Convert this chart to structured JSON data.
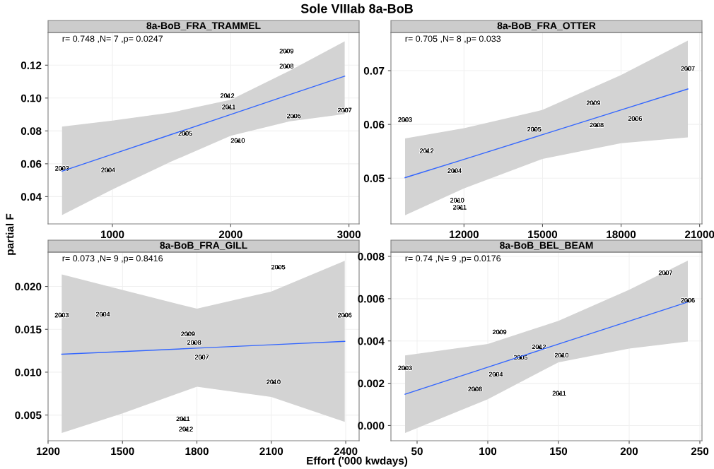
{
  "chart_data": [
    {
      "type": "scatter",
      "title": "8a-BoB_FRA_TRAMMEL",
      "ylabel": "partial F",
      "annotations": [
        "r= 0.748 ,N= 7 ,p= 0.0247",
        "Sole VIIIab 8a-BoB",
        {
          "text": "2003",
          "x": 574,
          "y": 0.0569
        },
        {
          "text": "2004",
          "x": 964,
          "y": 0.0559
        },
        {
          "text": "2005",
          "x": 1616,
          "y": 0.0782
        },
        {
          "text": "2010",
          "x": 2060,
          "y": 0.0738
        },
        {
          "text": "2011",
          "x": 1984,
          "y": 0.0943
        },
        {
          "text": "2012",
          "x": 1972,
          "y": 0.1011
        },
        {
          "text": "2006",
          "x": 2534,
          "y": 0.0888
        },
        {
          "text": "2008",
          "x": 2472,
          "y": 0.1191
        },
        {
          "text": "2009",
          "x": 2472,
          "y": 0.1283
        },
        {
          "text": "2007",
          "x": 2964,
          "y": 0.0923
        }
      ],
      "xlim": [
        456,
        3086
      ],
      "ylim": [
        0.0234,
        0.1399
      ],
      "xticks": [
        1000,
        2000,
        3000
      ],
      "yticks": [
        {
          "value": 0.04,
          "label": "0.04"
        },
        {
          "value": 0.06,
          "label": "0.06"
        },
        {
          "value": 0.08,
          "label": "0.08"
        },
        {
          "value": 0.1,
          "label": "0.10"
        },
        {
          "value": 0.12,
          "label": "0.12"
        }
      ],
      "grid": true,
      "series": [
        {
          "type": "line",
          "color": "#3366ff",
          "x": [
            574,
            1000,
            1500,
            2000,
            2500,
            2964
          ],
          "values": [
            0.0555,
            0.0658,
            0.0779,
            0.09,
            0.1021,
            0.1133
          ],
          "lower": [
            0.0288,
            0.0444,
            0.0614,
            0.077,
            0.0858,
            0.0902
          ],
          "upper": [
            0.0826,
            0.0863,
            0.0912,
            0.099,
            0.1167,
            0.1345
          ]
        },
        {
          "color": "#000000",
          "marker": "circle",
          "x": [
            574,
            964,
            1616,
            2060,
            1984,
            1972,
            2534,
            2472,
            2472,
            2964
          ],
          "values": [
            0.0569,
            0.0559,
            0.0782,
            0.0738,
            0.0943,
            0.1011,
            0.0888,
            0.1191,
            0.1283,
            0.0923
          ]
        }
      ]
    },
    {
      "type": "scatter",
      "title": "8a-BoB_FRA_OTTER",
      "annotations": [
        "r= 0.705 ,N= 8 ,p= 0.033",
        {
          "text": "2003",
          "x": 9750,
          "y": 0.0608
        },
        {
          "text": "2012",
          "x": 10578,
          "y": 0.055
        },
        {
          "text": "2004",
          "x": 11640,
          "y": 0.0513
        },
        {
          "text": "2010",
          "x": 11740,
          "y": 0.0458
        },
        {
          "text": "2011",
          "x": 11838,
          "y": 0.0445
        },
        {
          "text": "2005",
          "x": 14684,
          "y": 0.059
        },
        {
          "text": "2009",
          "x": 16942,
          "y": 0.0639
        },
        {
          "text": "2008",
          "x": 17068,
          "y": 0.0598
        },
        {
          "text": "2006",
          "x": 18535,
          "y": 0.061
        },
        {
          "text": "2007",
          "x": 20550,
          "y": 0.0703
        }
      ],
      "xlim": [
        9210,
        21090
      ],
      "ylim": [
        0.0415,
        0.0771
      ],
      "xticks": [
        12000,
        15000,
        18000,
        21000
      ],
      "yticks": [
        0.05,
        0.06,
        0.07
      ],
      "grid": true,
      "series": [
        {
          "type": "line",
          "color": "#3366ff",
          "x": [
            9750,
            12000,
            15000,
            18000,
            20550
          ],
          "values": [
            0.0501,
            0.0535,
            0.0581,
            0.0627,
            0.0666
          ],
          "lower": [
            0.0431,
            0.0481,
            0.0536,
            0.0565,
            0.0576
          ],
          "upper": [
            0.0574,
            0.0593,
            0.0627,
            0.0692,
            0.0756
          ]
        },
        {
          "color": "#000000",
          "marker": "circle",
          "x": [
            9750,
            10578,
            11640,
            11740,
            11838,
            14684,
            16942,
            17068,
            18535,
            20550
          ],
          "values": [
            0.0608,
            0.055,
            0.0513,
            0.0458,
            0.0445,
            0.059,
            0.0639,
            0.0598,
            0.061,
            0.0703
          ]
        }
      ]
    },
    {
      "type": "scatter",
      "title": "8a-BoB_FRA_GILL",
      "xlabel": "Effort ('000 kwdays)",
      "annotations": [
        "r= 0.073 ,N= 9 ,p= 0.8416",
        {
          "text": "2003",
          "x": 1255,
          "y": 0.0166
        },
        {
          "text": "2004",
          "x": 1421,
          "y": 0.0167
        },
        {
          "text": "2009",
          "x": 1764,
          "y": 0.0144
        },
        {
          "text": "2008",
          "x": 1789,
          "y": 0.0134
        },
        {
          "text": "2007",
          "x": 1820,
          "y": 0.0117
        },
        {
          "text": "2005",
          "x": 2128,
          "y": 0.0222
        },
        {
          "text": "2010",
          "x": 2109,
          "y": 0.0088
        },
        {
          "text": "2011",
          "x": 1744,
          "y": 0.0045
        },
        {
          "text": "2012",
          "x": 1756,
          "y": 0.0033
        },
        {
          "text": "2006",
          "x": 2396,
          "y": 0.0166
        }
      ],
      "xlim": [
        1200,
        2454
      ],
      "ylim": [
        0.002,
        0.024
      ],
      "xticks": [
        1200,
        1500,
        1800,
        2100,
        2400
      ],
      "yticks": [
        {
          "value": 0.005,
          "label": "0.005"
        },
        {
          "value": 0.01,
          "label": "0.010"
        },
        {
          "value": 0.015,
          "label": "0.015"
        },
        {
          "value": 0.02,
          "label": "0.020"
        }
      ],
      "grid": true,
      "series": [
        {
          "type": "line",
          "color": "#3366ff",
          "x": [
            1255,
            1500,
            1800,
            2100,
            2396
          ],
          "values": [
            0.0121,
            0.0124,
            0.0128,
            0.0132,
            0.0136
          ],
          "lower": [
            0.0029,
            0.0052,
            0.0083,
            0.0071,
            0.0042
          ],
          "upper": [
            0.0214,
            0.0196,
            0.0174,
            0.0194,
            0.023
          ]
        },
        {
          "color": "#000000",
          "marker": "circle",
          "x": [
            1255,
            1421,
            1764,
            1789,
            1820,
            2128,
            2109,
            1744,
            1756,
            2396
          ],
          "values": [
            0.0166,
            0.0167,
            0.0144,
            0.0134,
            0.0117,
            0.0222,
            0.0088,
            0.0045,
            0.0033,
            0.0166
          ]
        }
      ]
    },
    {
      "type": "scatter",
      "title": "8a-BoB_BEL_BEAM",
      "annotations": [
        "r= 0.74 ,N= 9 ,p= 0.0176",
        {
          "text": "2003",
          "x": 41.5,
          "y": 0.0027
        },
        {
          "text": "2008",
          "x": 91,
          "y": 0.0017
        },
        {
          "text": "2004",
          "x": 105.7,
          "y": 0.0024
        },
        {
          "text": "2009",
          "x": 108.3,
          "y": 0.0044
        },
        {
          "text": "2005",
          "x": 123.2,
          "y": 0.0032
        },
        {
          "text": "2012",
          "x": 136.2,
          "y": 0.0037
        },
        {
          "text": "2010",
          "x": 152.2,
          "y": 0.0033
        },
        {
          "text": "2011",
          "x": 150.5,
          "y": 0.0015
        },
        {
          "text": "2007",
          "x": 225.7,
          "y": 0.0072
        },
        {
          "text": "2006",
          "x": 241.5,
          "y": 0.0059
        }
      ],
      "xlim": [
        31.5,
        251.5
      ],
      "ylim": [
        -0.00072,
        0.0082
      ],
      "xticks": [
        50,
        100,
        150,
        200,
        250
      ],
      "yticks": [
        {
          "value": 0,
          "label": "0.000"
        },
        {
          "value": 0.002,
          "label": "0.002"
        },
        {
          "value": 0.004,
          "label": "0.004"
        },
        {
          "value": 0.006,
          "label": "0.006"
        },
        {
          "value": 0.008,
          "label": "0.008"
        }
      ],
      "grid": true,
      "series": [
        {
          "type": "line",
          "color": "#3366ff",
          "x": [
            41.5,
            100,
            150,
            200,
            241.5
          ],
          "values": [
            0.00148,
            0.00276,
            0.00385,
            0.00494,
            0.00584
          ],
          "lower": [
            -0.00035,
            0.00124,
            0.00299,
            0.00364,
            0.00397
          ],
          "upper": [
            0.00331,
            0.00386,
            0.00495,
            0.00642,
            0.0078
          ]
        },
        {
          "color": "#000000",
          "marker": "circle",
          "x": [
            41.5,
            91,
            105.7,
            108.3,
            123.2,
            136.2,
            152.2,
            150.5,
            225.7,
            241.5
          ],
          "values": [
            0.0027,
            0.0017,
            0.0024,
            0.0044,
            0.0032,
            0.0037,
            0.0033,
            0.0015,
            0.0072,
            0.0059
          ]
        }
      ]
    }
  ]
}
